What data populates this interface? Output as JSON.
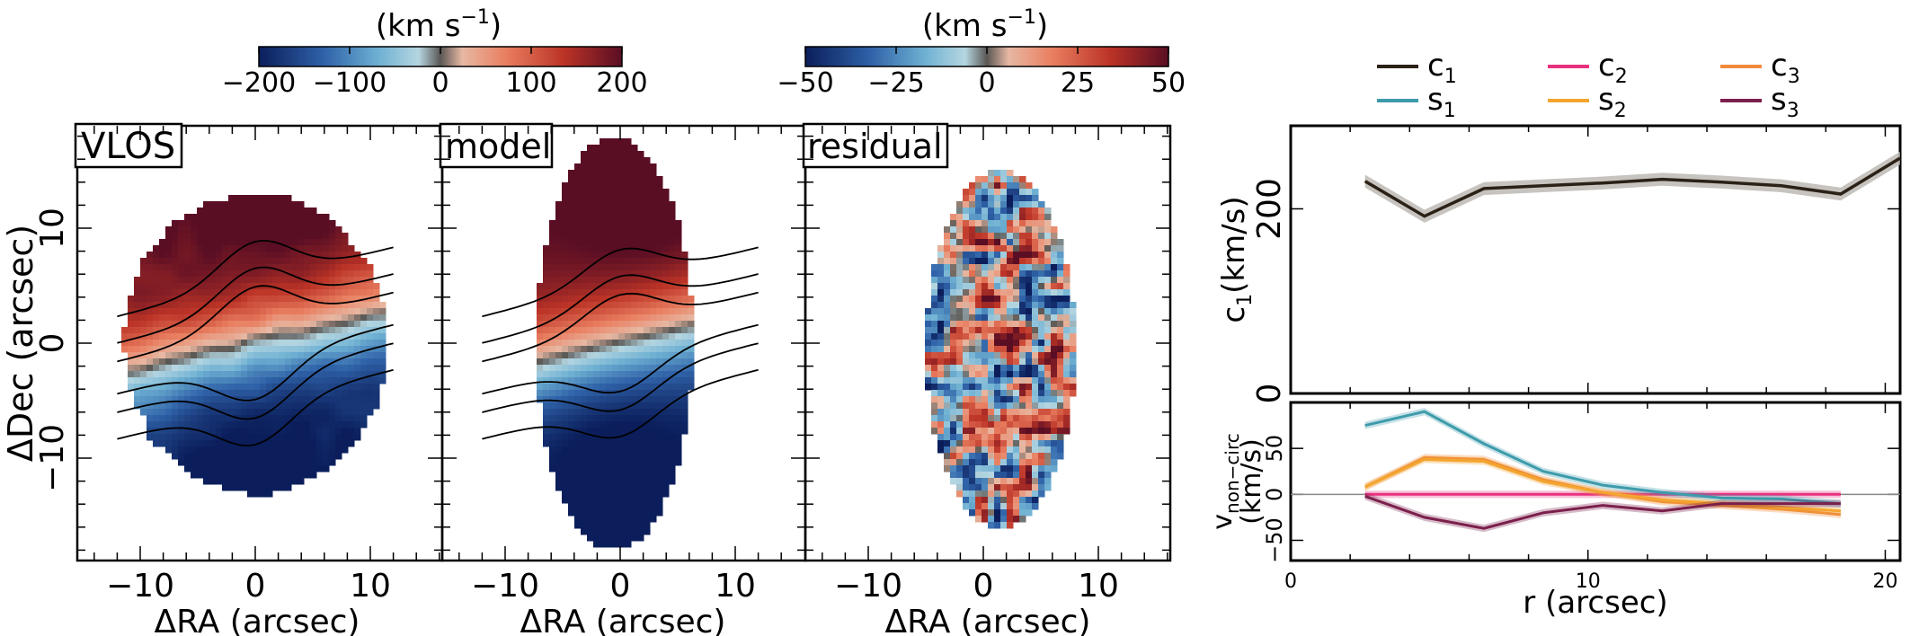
{
  "maps": {
    "xlabel": "ΔRA (arcsec)",
    "ylabel": "ΔDec (arcsec)",
    "xticks": [
      "−10",
      "0",
      "10"
    ],
    "yticks": [
      "10",
      "0",
      "−10"
    ],
    "panels": [
      {
        "label": "VLOS",
        "type": "observed"
      },
      {
        "label": "model",
        "type": "model"
      },
      {
        "label": "residual",
        "type": "residual"
      }
    ]
  },
  "colorbars": [
    {
      "unit": "(km s",
      "exp": "−1",
      "unit_close": ")",
      "ticks": [
        "−200",
        "−100",
        "0",
        "100",
        "200"
      ],
      "range": [
        -200,
        200
      ]
    },
    {
      "unit": "(km s",
      "exp": "−1",
      "unit_close": ")",
      "ticks": [
        "−50",
        "−25",
        "0",
        "25",
        "50"
      ],
      "range": [
        -50,
        50
      ]
    }
  ],
  "legend": {
    "entries": [
      {
        "base": "c",
        "sub": "1",
        "color": "#2b2117"
      },
      {
        "base": "c",
        "sub": "2",
        "color": "#e9327f"
      },
      {
        "base": "c",
        "sub": "3",
        "color": "#f08a3c"
      },
      {
        "base": "s",
        "sub": "1",
        "color": "#3d9bab"
      },
      {
        "base": "s",
        "sub": "2",
        "color": "#f3a52f"
      },
      {
        "base": "s",
        "sub": "3",
        "color": "#7b1f4b"
      }
    ]
  },
  "chart_data": [
    {
      "type": "line",
      "panel": "c1 profile",
      "ylabel_base": "c",
      "ylabel_sub": "1",
      "ylabel_rest": "(km/s)",
      "yticks": [
        "0",
        "200"
      ],
      "ylim": [
        0,
        290
      ],
      "xlim": [
        0,
        20.5
      ],
      "series": [
        {
          "name": "c1",
          "x": [
            2.5,
            4.5,
            6.5,
            8.5,
            10.5,
            12.5,
            14.5,
            16.5,
            18.5,
            20.5
          ],
          "y": [
            230,
            192,
            222,
            225,
            228,
            232,
            229,
            225,
            216,
            255
          ],
          "err": 7
        }
      ]
    },
    {
      "type": "line",
      "panel": "non-circular",
      "ylabel_base": "v",
      "ylabel_sub": "non−circ",
      "ylabel_rest": "(km/s)",
      "yticks": [
        "50",
        "0",
        "−50"
      ],
      "xticks": [
        "0",
        "10",
        "20"
      ],
      "xlabel": "r (arcsec)",
      "ylim": [
        -72,
        100
      ],
      "xlim": [
        0,
        20.5
      ],
      "series": [
        {
          "name": "c2",
          "x": [
            2.5,
            4.5,
            6.5,
            8.5,
            10.5,
            12.5,
            14.5,
            16.5,
            18.5
          ],
          "y": [
            0,
            0,
            0,
            0,
            0,
            0,
            0,
            0,
            0
          ]
        },
        {
          "name": "c3",
          "x": [
            2.5,
            4.5,
            6.5,
            8.5,
            10.5,
            12.5,
            14.5,
            16.5,
            18.5
          ],
          "y": [
            8,
            40,
            38,
            16,
            2,
            -8,
            -12,
            -16,
            -22
          ]
        },
        {
          "name": "s1",
          "x": [
            2.5,
            4.5,
            6.5,
            8.5,
            10.5,
            12.5,
            14.5,
            16.5,
            18.5
          ],
          "y": [
            75,
            90,
            55,
            25,
            10,
            2,
            -4,
            -5,
            -10
          ]
        },
        {
          "name": "s2",
          "x": [
            2.5,
            4.5,
            6.5,
            8.5,
            10.5,
            12.5,
            14.5,
            16.5,
            18.5
          ],
          "y": [
            8,
            38,
            36,
            14,
            2,
            -6,
            -10,
            -14,
            -18
          ]
        },
        {
          "name": "s3",
          "x": [
            2.5,
            4.5,
            6.5,
            8.5,
            10.5,
            12.5,
            14.5,
            16.5,
            18.5
          ],
          "y": [
            -2,
            -25,
            -37,
            -20,
            -12,
            -18,
            -10,
            -10,
            -10
          ]
        }
      ]
    }
  ]
}
